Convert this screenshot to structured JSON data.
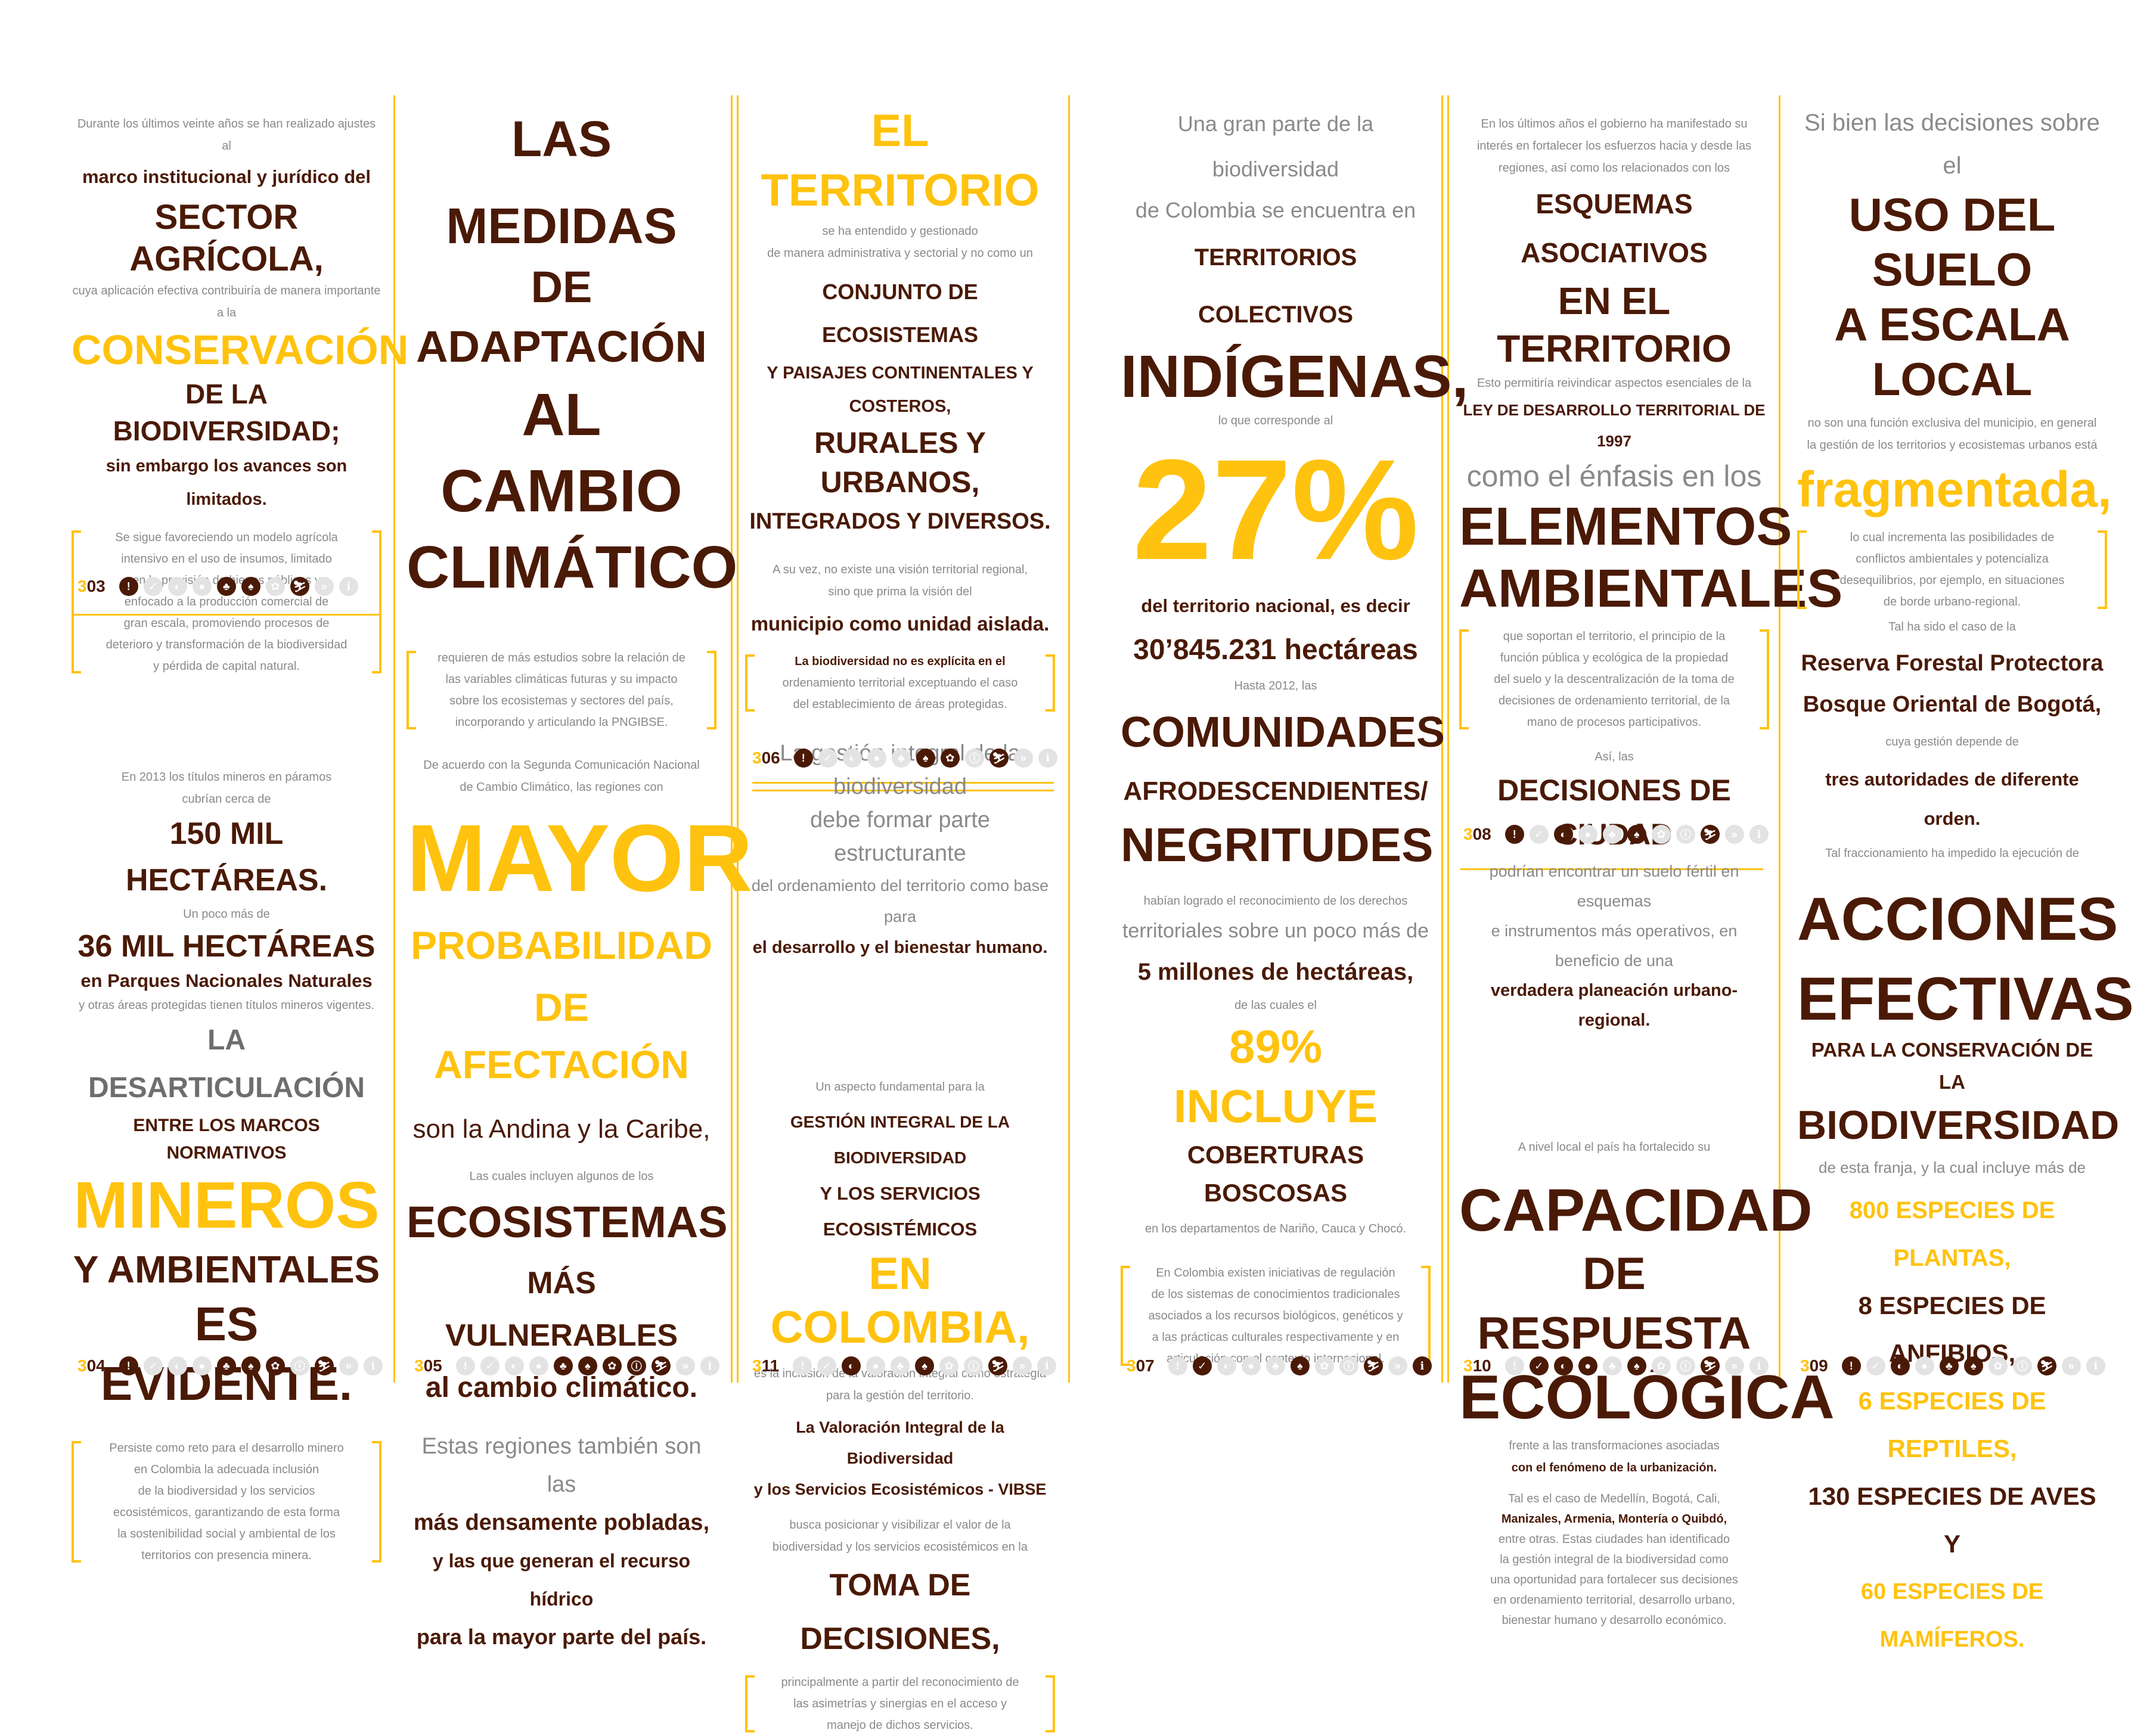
{
  "col1": {
    "p1": [
      "Durante los últimos veinte años se han realizado ajustes al"
    ],
    "p2": "marco institucional y jurídico del",
    "p3": "SECTOR AGRÍCOLA,",
    "p4": "cuya aplicación efectiva contribuiría de manera importante a la",
    "p5": "CONSERVACIÓN",
    "p6": "DE LA BIODIVERSIDAD;",
    "p7": "sin embargo los avances son limitados.",
    "q1": [
      "Se sigue favoreciendo un modelo agrícola",
      "intensivo en el uso de insumos, limitado",
      "en la provisión de bienes públicos y",
      "enfocado a la producción comercial de",
      "gran escala, promoviendo procesos de",
      "deterioro y transformación de la biodiversidad",
      "y pérdida de capital natural."
    ],
    "page_a": "303",
    "p8": [
      "En 2013 los títulos mineros en páramos",
      "cubrían cerca de"
    ],
    "p9": "150 MIL HECTÁREAS.",
    "p10": "Un poco más de",
    "p11": "36 MIL HECTÁREAS",
    "p12": "en Parques Nacionales Naturales",
    "p13": "y otras áreas protegidas tienen títulos mineros vigentes.",
    "p14": "LA DESARTICULACIÓN",
    "p15": "ENTRE LOS MARCOS NORMATIVOS",
    "p16": "MINEROS",
    "p17": "Y AMBIENTALES",
    "p18": "ES EVIDENTE.",
    "q2": [
      "Persiste como reto para el desarrollo minero",
      "en Colombia la adecuada inclusión",
      "de la biodiversidad y los servicios",
      "ecosistémicos, garantizando de esta forma",
      "la sostenibilidad social y ambiental de los",
      "territorios con presencia minera."
    ],
    "page_b": "304"
  },
  "col2": {
    "h1": [
      "LAS MEDIDAS",
      "DE ADAPTACIÓN",
      "AL CAMBIO",
      "CLIMÁTICO"
    ],
    "q1": [
      "requieren de más estudios sobre la relación de",
      "las variables climáticas futuras y su impacto",
      "sobre los ecosistemas y sectores del país,",
      "incorporando y articulando la PNGIBSE."
    ],
    "p1": [
      "De acuerdo con la Segunda Comunicación Nacional",
      "de Cambio Climático, las regiones con"
    ],
    "big": "MAYOR",
    "h2": [
      "PROBABILIDAD",
      "DE AFECTACIÓN"
    ],
    "p2": "son la Andina y la Caribe,",
    "p3": "Las cuales incluyen algunos de los",
    "h3": "ECOSISTEMAS",
    "h4": "MÁS VULNERABLES",
    "p4": "al cambio climático.",
    "p5": [
      "Estas regiones también son las",
      "más densamente pobladas,",
      "y las que generan el recurso hídrico",
      "para la mayor parte del país."
    ],
    "page": "305"
  },
  "col3": {
    "h1": "EL TERRITORIO",
    "p1": [
      "se ha entendido y gestionado",
      "de manera administrativa y sectorial y no como un"
    ],
    "h2": [
      "CONJUNTO DE ECOSISTEMAS",
      "Y PAISAJES CONTINENTALES Y COSTEROS,"
    ],
    "h3": "RURALES Y URBANOS,",
    "h4": "INTEGRADOS Y DIVERSOS.",
    "p2": [
      "A su vez, no existe una visión territorial regional,",
      "sino que prima la visión del"
    ],
    "p3": "municipio como unidad aislada.",
    "q1": [
      "La biodiversidad no es explícita en el",
      "ordenamiento territorial exceptuando el caso",
      "del establecimiento de áreas protegidas."
    ],
    "p4": [
      "La gestión integral de la biodiversidad",
      "debe formar parte estructurante"
    ],
    "p5": "del ordenamiento del territorio como base para",
    "p6": "el desarrollo y el bienestar humano.",
    "page_a": "306",
    "p7": [
      "Un aspecto fundamental para la"
    ],
    "h5": [
      "GESTIÓN INTEGRAL DE LA BIODIVERSIDAD",
      "Y LOS SERVICIOS ECOSISTÉMICOS"
    ],
    "h6": "EN COLOMBIA,",
    "p8": [
      "es la inclusión de la valoración integral como estrategia",
      "para la gestión del territorio."
    ],
    "p9": [
      "La Valoración Integral de la Biodiversidad",
      "y los Servicios Ecosistémicos - VIBSE"
    ],
    "p10": [
      "busca posicionar y visibilizar el valor de la",
      "biodiversidad y los servicios ecosistémicos en la"
    ],
    "h7": "TOMA DE DECISIONES,",
    "q2": [
      "principalmente a partir del reconocimiento de",
      "las asimetrías y sinergias en el acceso y",
      "manejo de dichos servicios."
    ],
    "page_b": "311"
  },
  "col4": {
    "p1": [
      "Una gran parte de la biodiversidad",
      "de Colombia se encuentra en"
    ],
    "h1": "TERRITORIOS COLECTIVOS",
    "h2": "INDÍGENAS,",
    "p2": "lo que corresponde al",
    "big": "27%",
    "p3": "del territorio nacional, es decir",
    "h3": "30’845.231 hectáreas",
    "p4": "Hasta 2012, las",
    "h4": "COMUNIDADES",
    "h5": "AFRODESCENDIENTES/",
    "h6": "NEGRITUDES",
    "p5": "habían logrado el reconocimiento de los derechos",
    "p6": "territoriales sobre un poco más de",
    "h7": "5 millones de hectáreas,",
    "p7": "de las cuales el",
    "h8": "89% INCLUYE",
    "h9": "COBERTURAS BOSCOSAS",
    "p8": "en los departamentos de Nariño, Cauca y Chocó.",
    "q1": [
      "En Colombia existen iniciativas de regulación",
      "de los sistemas de conocimientos tradicionales",
      "asociados a los recursos biológicos, genéticos y",
      "a las prácticas culturales respectivamente y en",
      "articulación con el contexto internacional."
    ],
    "page": "307"
  },
  "col5": {
    "p1": [
      "En los últimos años el gobierno ha manifestado su",
      "interés en fortalecer los esfuerzos hacia y desde las",
      "regiones, así como los relacionados con los"
    ],
    "h1": "ESQUEMAS ASOCIATIVOS",
    "h2": "EN EL TERRITORIO",
    "p2": "Esto permitiría reivindicar aspectos esenciales de la",
    "p3": "LEY DE DESARROLLO TERRITORIAL DE 1997",
    "p4": "como el énfasis en los",
    "h3": [
      "ELEMENTOS",
      "AMBIENTALES"
    ],
    "q1": [
      "que soportan el territorio, el principio de la",
      "función pública y ecológica de la propiedad",
      "del suelo y la descentralización de la toma de",
      "decisiones de ordenamiento territorial, de la",
      "mano de procesos participativos."
    ],
    "p5": "Así, las",
    "h4": "DECISIONES DE CIUDAD",
    "p6": [
      "podrían encontrar un suelo fértil en esquemas",
      "e instrumentos más operativos, en beneficio de una"
    ],
    "p7": "verdadera planeación urbano-regional.",
    "page_a": "308",
    "p8": "A nivel local el país ha fortalecido su",
    "h5": [
      "CAPACIDAD",
      "DE RESPUESTA",
      "ECOLÓGICA"
    ],
    "p9": [
      "frente a las transformaciones asociadas",
      "con el fenómeno de la urbanización."
    ],
    "q2": [
      "Tal es el caso de Medellín, Bogotá, Cali,",
      "Manizales, Armenia, Montería o Quibdó,",
      "entre otras. Estas ciudades han identificado",
      "la gestión integral de la biodiversidad como",
      "una oportunidad para fortalecer sus decisiones",
      "en ordenamiento territorial, desarrollo urbano,",
      "bienestar humano y desarrollo económico."
    ],
    "page_b": "310"
  },
  "col6": {
    "p1": "Si bien las decisiones sobre el",
    "h1": [
      "USO DEL SUELO",
      "A ESCALA LOCAL"
    ],
    "p2": [
      "no son una función exclusiva del municipio, en general",
      "la gestión de los territorios y ecosistemas urbanos está"
    ],
    "h2": "fragmentada,",
    "q1": [
      "lo cual incrementa las posibilidades de",
      "conflictos ambientales y potencializa",
      "desequilibrios, por ejemplo, en situaciones",
      "de borde urbano-regional."
    ],
    "p3": "Tal ha sido el caso de la",
    "h3": [
      "Reserva Forestal Protectora",
      "Bosque Oriental de Bogotá,"
    ],
    "p4": "cuya gestión depende de",
    "p5": "tres autoridades de diferente orden.",
    "p6": "Tal fraccionamiento ha impedido la ejecución de",
    "h4": [
      "ACCIONES",
      "EFECTIVAS"
    ],
    "h5": "PARA LA CONSERVACIÓN DE LA",
    "h6": "BIODIVERSIDAD",
    "p7": "de esta franja, y la cual incluye más de",
    "list": [
      "800 ESPECIES DE PLANTAS,",
      "8 ESPECIES DE ANFIBIOS,",
      "6 ESPECIES DE REPTILES,",
      "130 ESPECIES DE AVES Y",
      "60 ESPECIES DE MAMÍFEROS."
    ],
    "page": "309"
  },
  "icons": [
    "!",
    "✓",
    "◐",
    "●",
    "♣",
    "♠",
    "✿",
    "ⓘ",
    "⛷",
    "»",
    "ℹ"
  ]
}
